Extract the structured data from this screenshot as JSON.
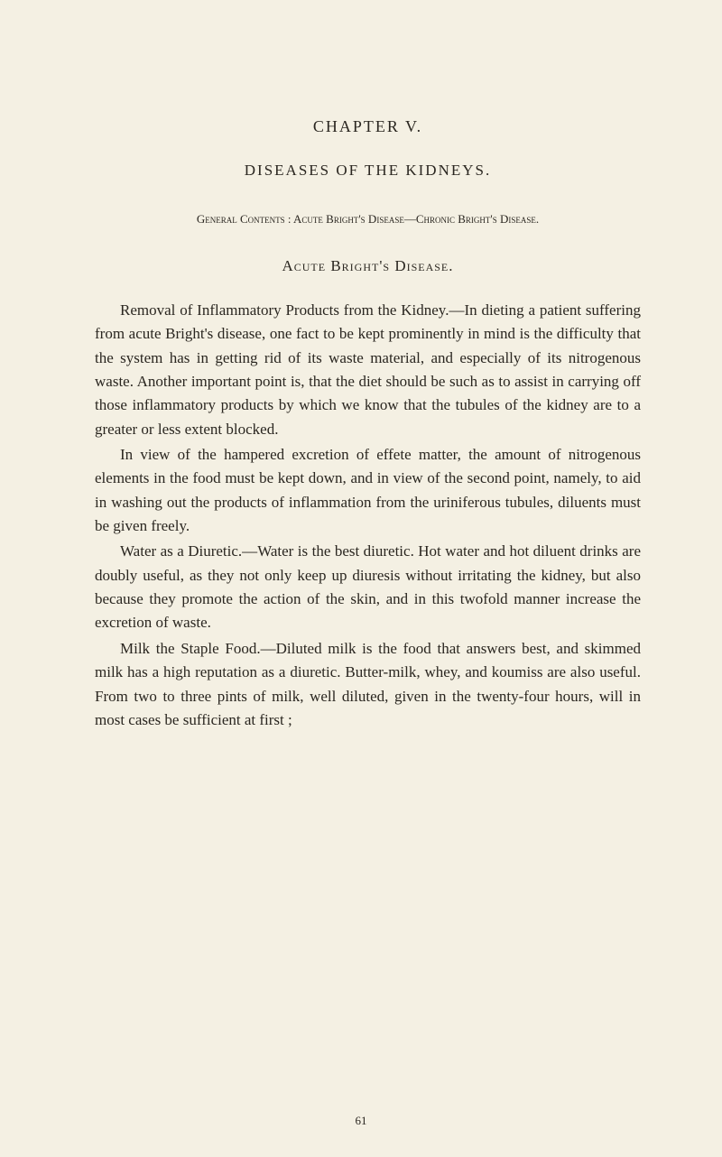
{
  "chapter": {
    "heading": "CHAPTER V.",
    "title": "DISEASES OF THE KIDNEYS.",
    "contents_label": "General Contents :",
    "contents_text": " Acute Bright's Disease—Chronic Bright's Disease.",
    "section_heading": "Acute Bright's Disease."
  },
  "paragraphs": [
    {
      "run_in": "Removal of Inflammatory Products from the Kidney.—",
      "body": "In dieting a patient suffering from acute Bright's disease, one fact to be kept prominently in mind is the difficulty that the system has in getting rid of its waste material, and especially of its nitrogenous waste. Another important point is, that the diet should be such as to assist in carrying off those inflammatory products by which we know that the tubules of the kidney are to a greater or less extent blocked."
    },
    {
      "run_in": "",
      "body": "In view of the hampered excretion of effete matter, the amount of nitrogenous elements in the food must be kept down, and in view of the second point, namely, to aid in washing out the products of inflammation from the uriniferous tubules, diluents must be given freely."
    },
    {
      "run_in": "Water as a Diuretic.—",
      "body": "Water is the best diuretic. Hot water and hot diluent drinks are doubly useful, as they not only keep up diuresis without irritating the kidney, but also because they promote the action of the skin, and in this twofold manner increase the excretion of waste."
    },
    {
      "run_in": "Milk the Staple Food.—",
      "body": "Diluted milk is the food that answers best, and skimmed milk has a high reputation as a diuretic. Butter-milk, whey, and koumiss are also useful. From two to three pints of milk, well diluted, given in the twenty-four hours, will in most cases be sufficient at first ;"
    }
  ],
  "page_number": "61",
  "colors": {
    "background": "#f4f0e3",
    "text": "#2a2620"
  },
  "typography": {
    "body_fontsize": 17,
    "heading_fontsize": 18,
    "small_fontsize": 13,
    "line_height": 1.55,
    "font_family": "Georgia, Times New Roman, serif"
  }
}
